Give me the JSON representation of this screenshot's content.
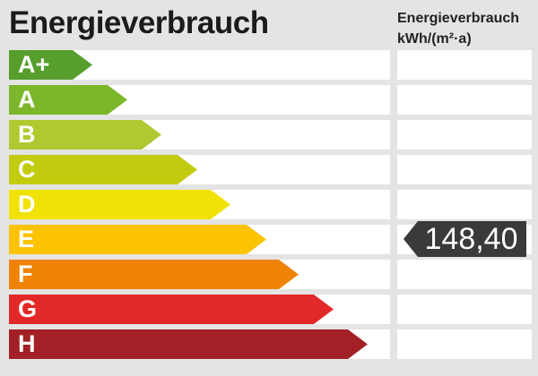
{
  "header": {
    "title": "Energieverbrauch",
    "unit_line1": "Energieverbrauch",
    "unit_line2": "kWh/(m²·a)"
  },
  "badge": {
    "value": "148,40",
    "row": "E",
    "color": "#3a3a3a"
  },
  "scale": {
    "rows": [
      {
        "label": "A+",
        "color": "#579e2d",
        "arrow_width": 93
      },
      {
        "label": "A",
        "color": "#7cb62a",
        "arrow_width": 132
      },
      {
        "label": "B",
        "color": "#b1c830",
        "arrow_width": 170
      },
      {
        "label": "C",
        "color": "#c3cb0e",
        "arrow_width": 210
      },
      {
        "label": "D",
        "color": "#f0e204",
        "arrow_width": 247
      },
      {
        "label": "E",
        "color": "#fcc303",
        "arrow_width": 287
      },
      {
        "label": "F",
        "color": "#ee8306",
        "arrow_width": 323
      },
      {
        "label": "G",
        "color": "#e22828",
        "arrow_width": 362
      },
      {
        "label": "H",
        "color": "#a22026",
        "arrow_width": 400
      }
    ]
  },
  "chart_data": {
    "type": "bar",
    "orientation": "horizontal",
    "title": "Energieverbrauch",
    "ylabel": "Energieverbrauch kWh/(m²·a)",
    "categories": [
      "A+",
      "A",
      "B",
      "C",
      "D",
      "E",
      "F",
      "G",
      "H"
    ],
    "values": [
      93,
      132,
      170,
      210,
      247,
      287,
      323,
      362,
      400
    ],
    "bar_colors": [
      "#579e2d",
      "#7cb62a",
      "#b1c830",
      "#c3cb0e",
      "#f0e204",
      "#fcc303",
      "#ee8306",
      "#e22828",
      "#a22026"
    ],
    "marked_class": "E",
    "marked_value": 148.4,
    "marked_value_display": "148,40",
    "legend_position": "none",
    "grid": false
  }
}
